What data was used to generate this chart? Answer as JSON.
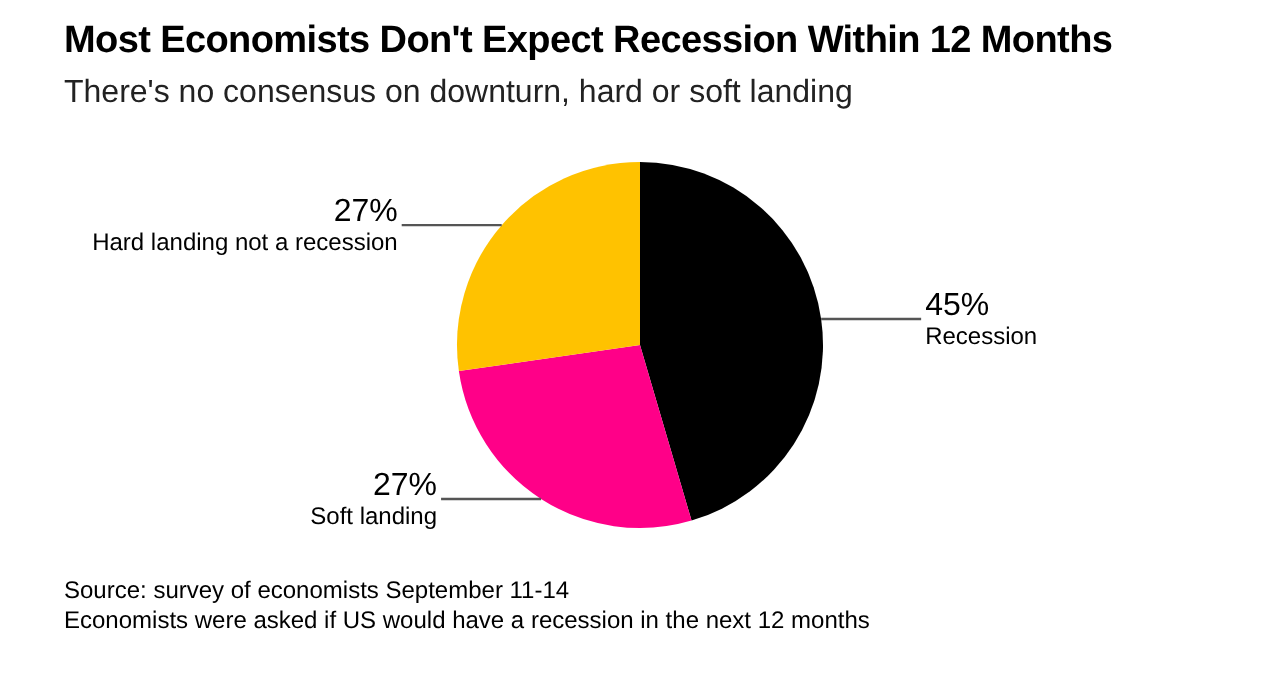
{
  "chart_data": {
    "type": "pie",
    "title": "Most Economists Don't Expect Recession Within 12 Months",
    "subtitle": "There's no consensus on downturn, hard or soft landing",
    "categories": [
      "Recession",
      "Soft landing",
      "Hard landing not a recession"
    ],
    "values": [
      45,
      27,
      27
    ],
    "value_labels": [
      "45%",
      "27%",
      "27%"
    ],
    "colors": [
      "#000000",
      "#ff0088",
      "#ffc200"
    ],
    "annotations": [
      "Source: survey of economists September 11-14",
      "Economists were asked if US would have a recession in the next 12 months"
    ]
  }
}
